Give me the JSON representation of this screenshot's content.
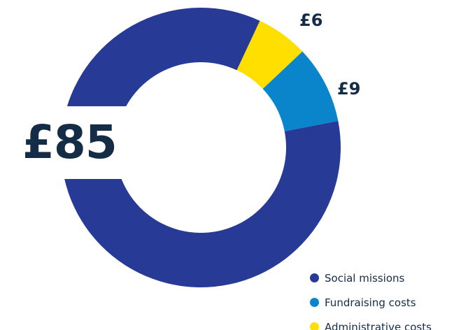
{
  "chart_data": {
    "type": "pie",
    "style": "donut",
    "categories": [
      "Social missions",
      "Fundraising costs",
      "Administrative costs"
    ],
    "values": [
      85,
      9,
      6
    ],
    "value_labels": [
      "£85",
      "£9",
      "£6"
    ],
    "colors": [
      "#263a96",
      "#0a85cc",
      "#ffdf00"
    ],
    "legend": "bottom-right",
    "title": ""
  }
}
